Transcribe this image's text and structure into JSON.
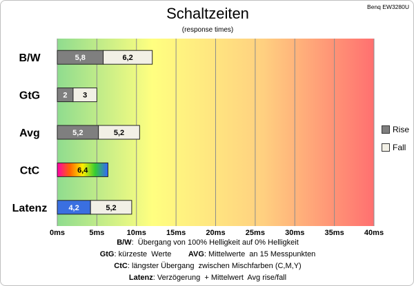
{
  "title": "Schaltzeiten",
  "subtitle": "(response times)",
  "model": "Benq EW3280U",
  "chart_data": {
    "type": "bar",
    "orientation": "horizontal",
    "stacked": true,
    "categories": [
      "B/W",
      "GtG",
      "Avg",
      "CtC",
      "Latenz"
    ],
    "series": [
      {
        "name": "Rise",
        "values": [
          5.8,
          2,
          5.2,
          6.4,
          4.2
        ],
        "labels": [
          "5,8",
          "2",
          "5,2",
          "6,4",
          "4,2"
        ],
        "color": "#7f7f7f"
      },
      {
        "name": "Fall",
        "values": [
          6.2,
          3,
          5.2,
          null,
          5.2
        ],
        "labels": [
          "6,2",
          "3",
          "5,2",
          "",
          "5,2"
        ],
        "color": "#f2f0e6"
      }
    ],
    "special_colors": {
      "CtC": "rainbow",
      "Latenz": "#3a6fe0"
    },
    "xlim": [
      0,
      40
    ],
    "xticks": [
      "0ms",
      "5ms",
      "10ms",
      "15ms",
      "20ms",
      "25ms",
      "30ms",
      "35ms",
      "40ms"
    ],
    "xtick_values": [
      0,
      5,
      10,
      15,
      20,
      25,
      30,
      35,
      40
    ],
    "background_gradient": [
      "#8fdc8f",
      "#ffff80",
      "#ffd080",
      "#ff7070"
    ],
    "grid": true,
    "legend_position": "right"
  },
  "legend": [
    {
      "label": "Rise",
      "color": "#7f7f7f"
    },
    {
      "label": "Fall",
      "color": "#f2f0e6"
    }
  ],
  "notes": [
    {
      "parts": [
        {
          "b": "B/W"
        },
        {
          "t": ":  Übergang von 100% Helligkeit auf 0% Helligkeit"
        }
      ]
    },
    {
      "parts": [
        {
          "b": "GtG"
        },
        {
          "t": ": kürzeste  Werte        "
        },
        {
          "b": "AVG"
        },
        {
          "t": ": Mittelwerte  an 15 Messpunkten"
        }
      ]
    },
    {
      "parts": [
        {
          "b": "CtC"
        },
        {
          "t": ": längster Übergang  zwischen Mischfarben (C,M,Y)"
        }
      ]
    },
    {
      "parts": [
        {
          "b": "Latenz"
        },
        {
          "t": ": Verzögerung  + Mittelwert  Avg rise/fall"
        }
      ]
    }
  ]
}
